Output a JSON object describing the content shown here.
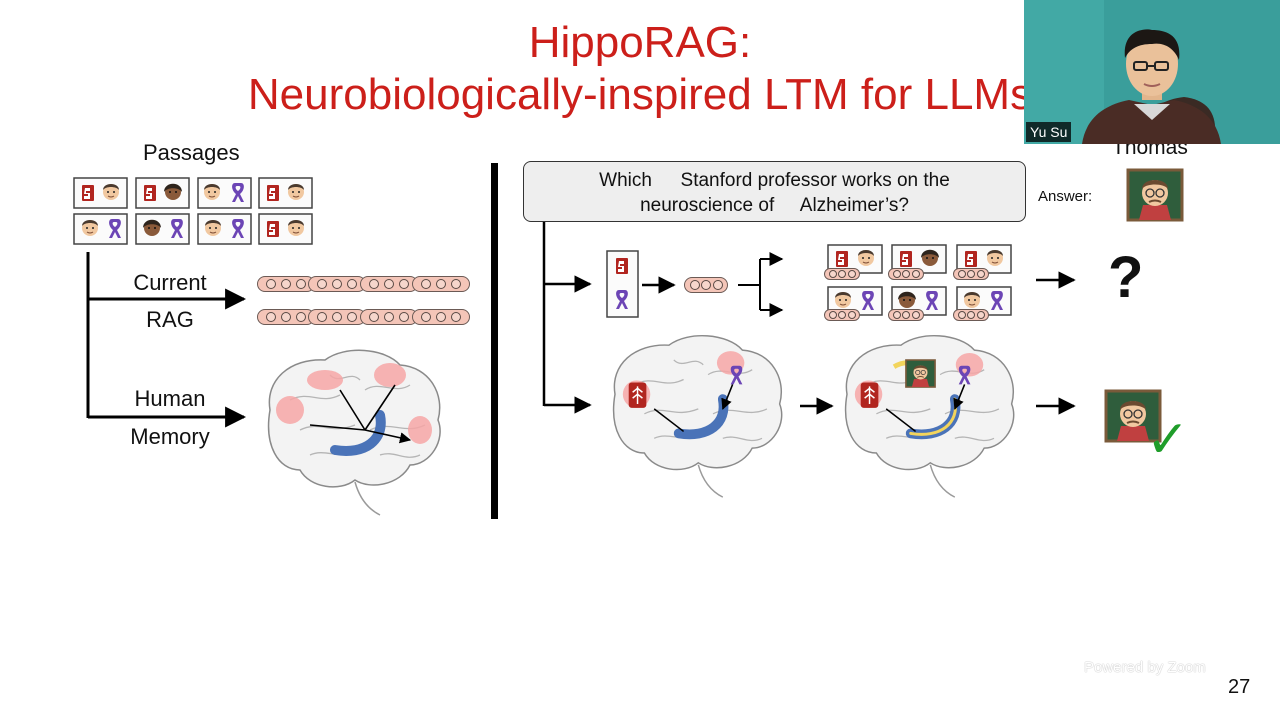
{
  "slide": {
    "title_line1": "HippoRAG:",
    "title_line2": "Neurobiologically-inspired LTM for LLMs",
    "page_number": "27"
  },
  "left_panel": {
    "passages_label": "Passages",
    "current_rag_label_line1": "Current",
    "current_rag_label_line2": "RAG",
    "human_memory_label_line1": "Human",
    "human_memory_label_line2": "Memory"
  },
  "right_panel": {
    "query_line1_pre": "Which",
    "query_line1_post": "Stanford professor works on the",
    "query_line2_pre": "neuroscience of",
    "query_line2_post": "Alzheimer’s?",
    "answer_label": "Answer:",
    "answer_name": "Thomas",
    "unknown_mark": "?",
    "check_mark": "✓"
  },
  "video": {
    "participant_name": "Yu Su"
  },
  "overlay": {
    "powered_by": "Powered by Zoom"
  },
  "colors": {
    "title_red": "#cc1f1a",
    "stanford_red": "#b1251f",
    "ribbon_purple": "#6c45b5",
    "hippocampus_blue": "#4a73b8",
    "check_green": "#1f9d2a"
  },
  "icons": [
    "stanford-logo-icon",
    "purple-ribbon-icon",
    "person-emoji-icon",
    "teacher-emoji-icon",
    "brain-icon",
    "arrow-icon",
    "checkmark-icon"
  ]
}
